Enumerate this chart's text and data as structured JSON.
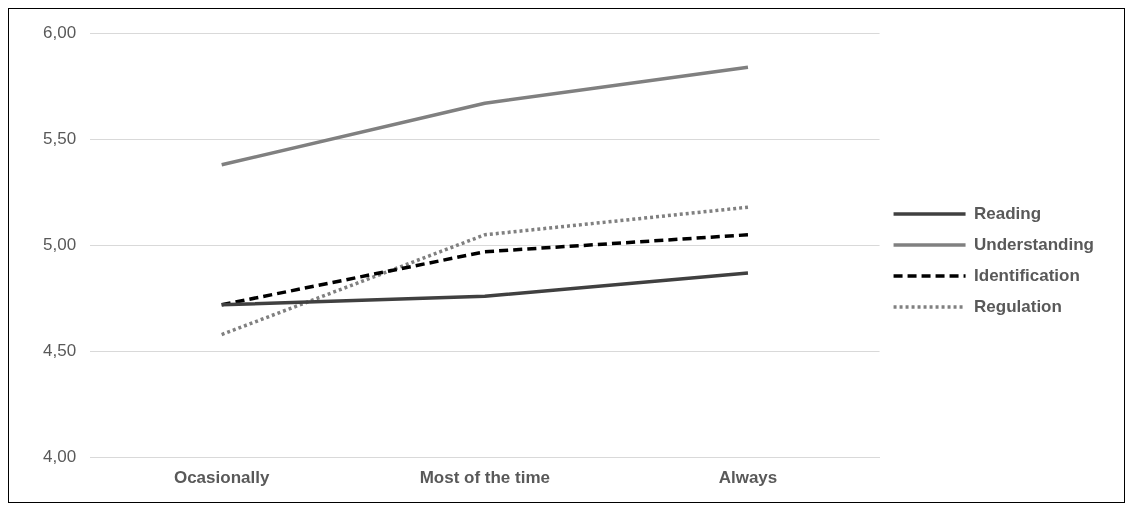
{
  "chart_data": {
    "type": "line",
    "categories": [
      "Ocasionally",
      "Most of the time",
      "Always"
    ],
    "series": [
      {
        "name": "Reading",
        "color": "#404040",
        "line_style": "solid",
        "values": [
          4.72,
          4.76,
          4.87
        ]
      },
      {
        "name": "Understanding",
        "color": "#808080",
        "line_style": "solid",
        "values": [
          5.38,
          5.67,
          5.84
        ]
      },
      {
        "name": "Identification",
        "color": "#000000",
        "line_style": "dashed",
        "values": [
          4.72,
          4.97,
          5.05
        ]
      },
      {
        "name": "Regulation",
        "color": "#808080",
        "line_style": "dotted",
        "values": [
          4.58,
          5.05,
          5.18
        ]
      }
    ],
    "ylim": [
      4,
      6
    ],
    "yticks": [
      {
        "value": 4,
        "label": "4,00"
      },
      {
        "value": 4.5,
        "label": "4,50"
      },
      {
        "value": 5,
        "label": "5,00"
      },
      {
        "value": 5.5,
        "label": "5,50"
      },
      {
        "value": 6,
        "label": "6,00"
      }
    ],
    "grid": "y",
    "legend": "right",
    "marker": "none"
  }
}
